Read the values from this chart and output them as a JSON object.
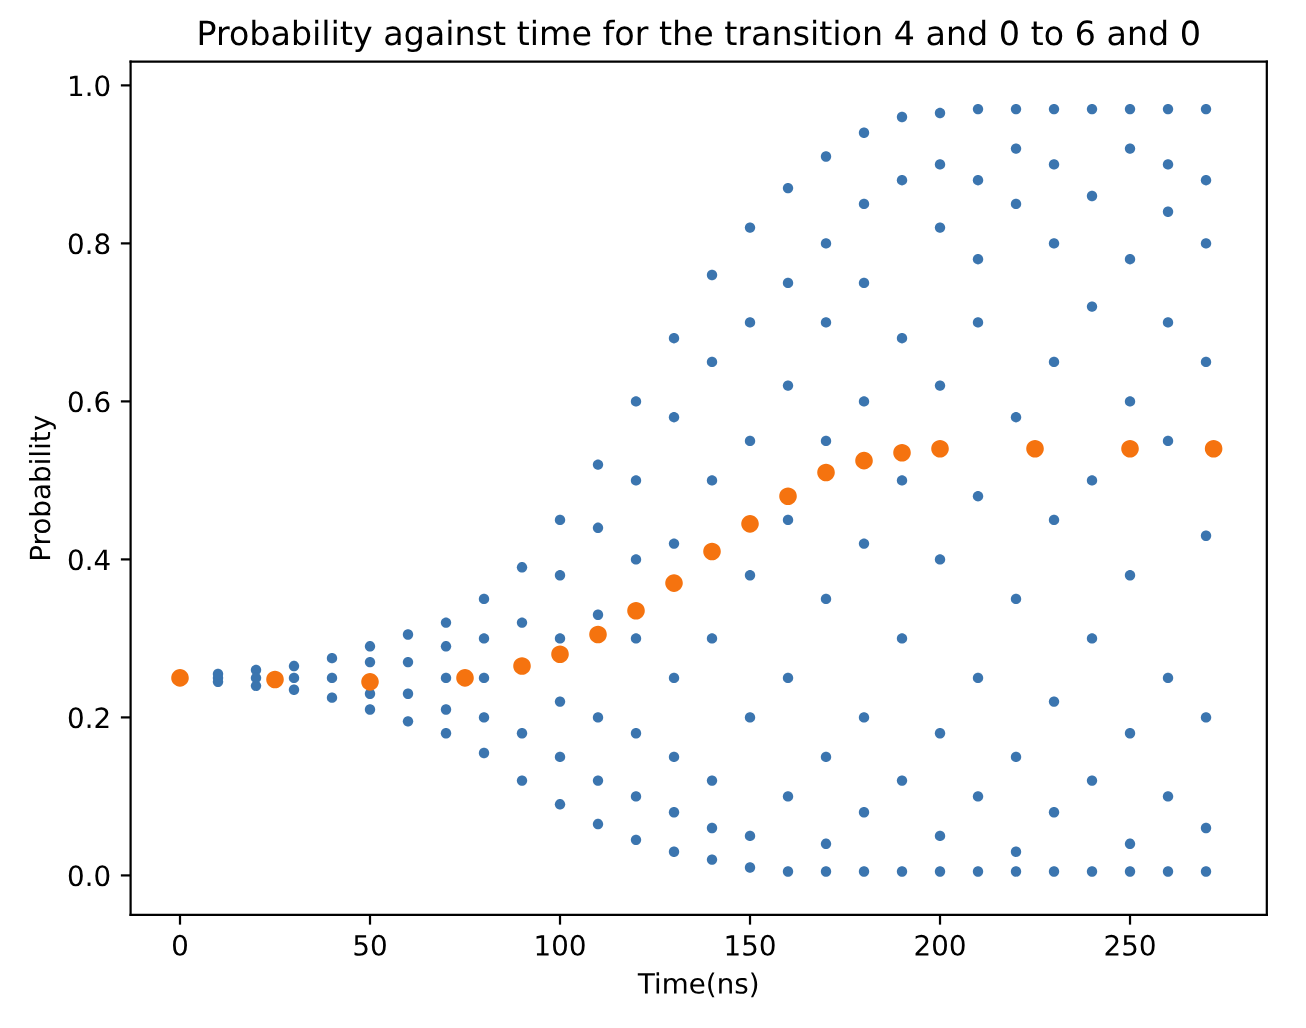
{
  "chart_data": {
    "type": "scatter",
    "title": "Probability against time for the transition 4 and 0 to 6 and 0",
    "xlabel": "Time(ns)",
    "ylabel": "Probability",
    "xlim": [
      -13,
      286
    ],
    "xticks": [
      0,
      50,
      100,
      150,
      200,
      250
    ],
    "ylim": [
      -0.05,
      1.03
    ],
    "yticks": [
      {
        "value": 0,
        "label": "0.0"
      },
      {
        "value": 0.2,
        "label": "0.2"
      },
      {
        "value": 0.4,
        "label": "0.4"
      },
      {
        "value": 0.6,
        "label": "0.6"
      },
      {
        "value": 0.8,
        "label": "0.8"
      },
      {
        "value": 1,
        "label": "1.0"
      }
    ],
    "grid": false,
    "legend": false,
    "marker": "circle",
    "series": [
      {
        "color": "#3b75af",
        "x": [
          10,
          10,
          10,
          20,
          20,
          20,
          30,
          30,
          30,
          40,
          40,
          40,
          50,
          50,
          50,
          50,
          60,
          60,
          60,
          60,
          70,
          70,
          70,
          70,
          70,
          80,
          80,
          80,
          80,
          80,
          90,
          90,
          90,
          90,
          100,
          100,
          100,
          100,
          100,
          100,
          110,
          110,
          110,
          110,
          110,
          110,
          120,
          120,
          120,
          120,
          120,
          120,
          120,
          130,
          130,
          130,
          130,
          130,
          130,
          130,
          140,
          140,
          140,
          140,
          140,
          140,
          140,
          150,
          150,
          150,
          150,
          150,
          150,
          150,
          160,
          160,
          160,
          160,
          160,
          160,
          160,
          170,
          170,
          170,
          170,
          170,
          170,
          170,
          170,
          180,
          180,
          180,
          180,
          180,
          180,
          180,
          180,
          190,
          190,
          190,
          190,
          190,
          190,
          190,
          200,
          200,
          200,
          200,
          200,
          200,
          200,
          200,
          210,
          210,
          210,
          210,
          210,
          210,
          210,
          210,
          220,
          220,
          220,
          220,
          220,
          220,
          220,
          220,
          230,
          230,
          230,
          230,
          230,
          230,
          230,
          230,
          240,
          240,
          240,
          240,
          240,
          240,
          240,
          250,
          250,
          250,
          250,
          250,
          250,
          250,
          250,
          260,
          260,
          260,
          260,
          260,
          260,
          260,
          260,
          270,
          270,
          270,
          270,
          270,
          270,
          270,
          270
        ],
        "values": [
          0.25,
          0.245,
          0.255,
          0.24,
          0.26,
          0.25,
          0.235,
          0.265,
          0.25,
          0.225,
          0.275,
          0.25,
          0.21,
          0.29,
          0.23,
          0.27,
          0.195,
          0.305,
          0.23,
          0.27,
          0.18,
          0.32,
          0.21,
          0.29,
          0.25,
          0.155,
          0.35,
          0.2,
          0.3,
          0.25,
          0.12,
          0.39,
          0.18,
          0.32,
          0.09,
          0.45,
          0.15,
          0.38,
          0.22,
          0.3,
          0.065,
          0.52,
          0.12,
          0.44,
          0.2,
          0.33,
          0.045,
          0.6,
          0.1,
          0.5,
          0.18,
          0.3,
          0.4,
          0.03,
          0.68,
          0.08,
          0.58,
          0.15,
          0.25,
          0.42,
          0.02,
          0.76,
          0.06,
          0.65,
          0.12,
          0.3,
          0.5,
          0.01,
          0.82,
          0.05,
          0.7,
          0.2,
          0.38,
          0.55,
          0.005,
          0.87,
          0.1,
          0.75,
          0.25,
          0.45,
          0.62,
          0.005,
          0.91,
          0.04,
          0.8,
          0.15,
          0.35,
          0.55,
          0.7,
          0.005,
          0.94,
          0.08,
          0.85,
          0.2,
          0.42,
          0.6,
          0.75,
          0.005,
          0.96,
          0.12,
          0.88,
          0.3,
          0.5,
          0.68,
          0.005,
          0.965,
          0.05,
          0.82,
          0.18,
          0.4,
          0.62,
          0.9,
          0.005,
          0.97,
          0.1,
          0.78,
          0.25,
          0.48,
          0.7,
          0.88,
          0.005,
          0.97,
          0.03,
          0.85,
          0.15,
          0.35,
          0.58,
          0.92,
          0.005,
          0.97,
          0.08,
          0.8,
          0.22,
          0.45,
          0.65,
          0.9,
          0.005,
          0.97,
          0.12,
          0.86,
          0.3,
          0.5,
          0.72,
          0.005,
          0.97,
          0.04,
          0.78,
          0.18,
          0.38,
          0.6,
          0.92,
          0.005,
          0.97,
          0.1,
          0.84,
          0.25,
          0.55,
          0.7,
          0.9,
          0.005,
          0.97,
          0.06,
          0.8,
          0.2,
          0.43,
          0.65,
          0.88
        ]
      },
      {
        "color": "#f5730f",
        "x": [
          0,
          25,
          50,
          75,
          90,
          100,
          110,
          120,
          130,
          140,
          150,
          160,
          170,
          180,
          190,
          200,
          225,
          250,
          272
        ],
        "values": [
          0.25,
          0.248,
          0.245,
          0.25,
          0.265,
          0.28,
          0.305,
          0.335,
          0.37,
          0.41,
          0.445,
          0.48,
          0.51,
          0.525,
          0.535,
          0.54,
          0.54,
          0.54,
          0.54
        ]
      }
    ]
  }
}
